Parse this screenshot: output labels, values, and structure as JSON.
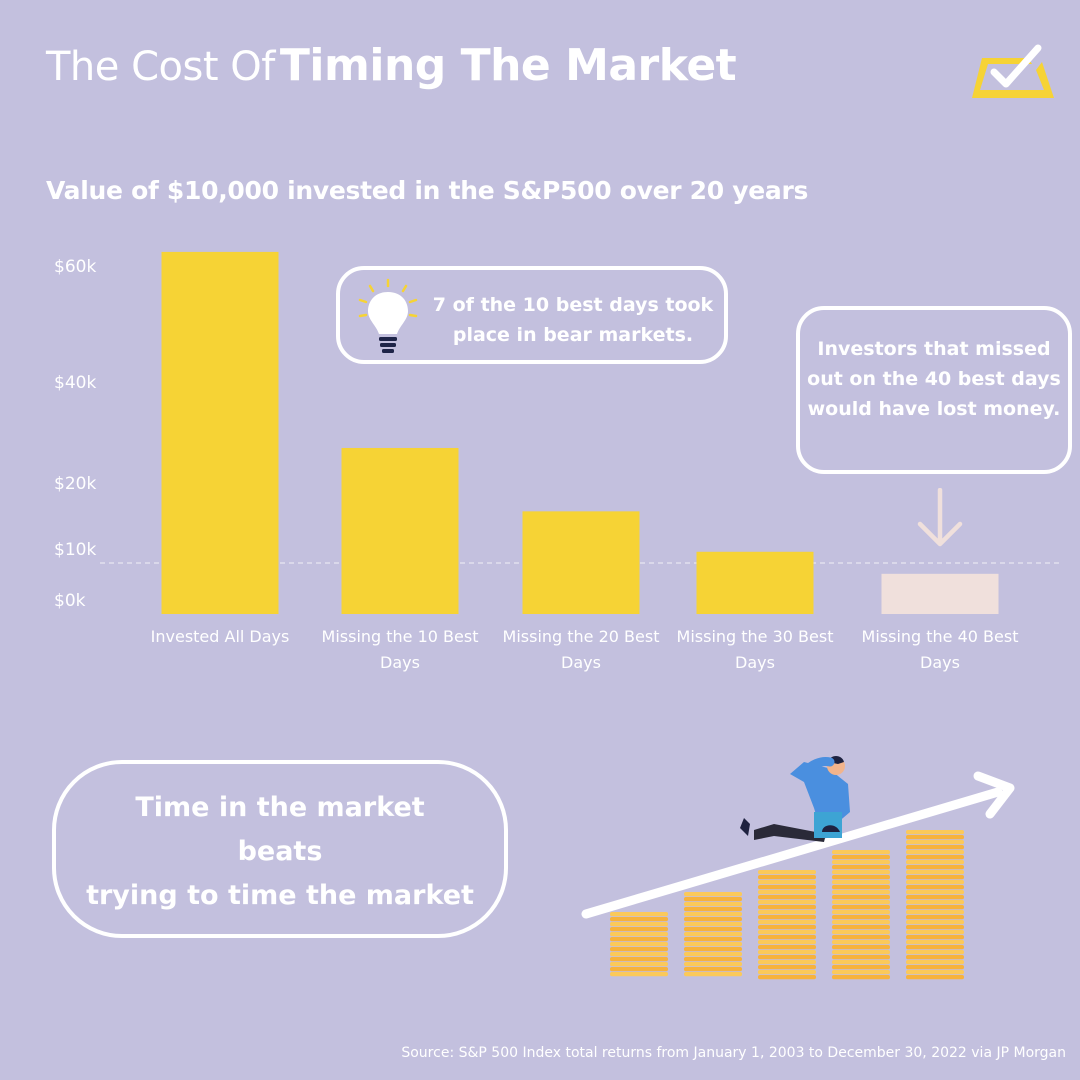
{
  "title": {
    "light": "The Cost Of",
    "bold": "Timing The Market"
  },
  "subtitle": "Value of $10,000 invested in the S&P500 over 20 years",
  "icons": {
    "logo": "yellow-checkbox-logo-icon",
    "bulb": "lightbulb-icon",
    "arrow": "down-arrow-icon",
    "illustration": "man-on-rising-coin-stacks-illustration"
  },
  "colors": {
    "background": "#c3c0de",
    "bar": "#f6d335",
    "bar_highlight": "#f0e0dc",
    "text": "#ffffff"
  },
  "callouts": {
    "bulb_text": "7 of the 10 best days took place in bear markets.",
    "missed_text": "Investors that missed out on the 40 best days would have lost money."
  },
  "tagline": {
    "line1": "Time in the market",
    "line2": "beats",
    "line3": "trying to time the market"
  },
  "source": "Source: S&P 500 Index total returns from January 1, 2003 to December 30, 2022 via JP Morgan",
  "chart_data": {
    "type": "bar",
    "title": "Value of $10,000 invested in the S&P500 over 20 years",
    "categories": [
      "Invested All Days",
      "Missing the 10 Best Days",
      "Missing the 20 Best Days",
      "Missing the 30 Best Days",
      "Missing the 40 Best Days"
    ],
    "values": [
      64844,
      29708,
      17826,
      11701,
      7878
    ],
    "highlight_index": 4,
    "yticks": [
      {
        "value": 0,
        "label": "$0k"
      },
      {
        "value": 10000,
        "label": "$10k"
      },
      {
        "value": 20000,
        "label": "$20k"
      },
      {
        "value": 40000,
        "label": "$40k"
      },
      {
        "value": 60000,
        "label": "$60k"
      }
    ],
    "reference_line": 10000,
    "xlabel": "",
    "ylabel": "",
    "grid": false
  }
}
